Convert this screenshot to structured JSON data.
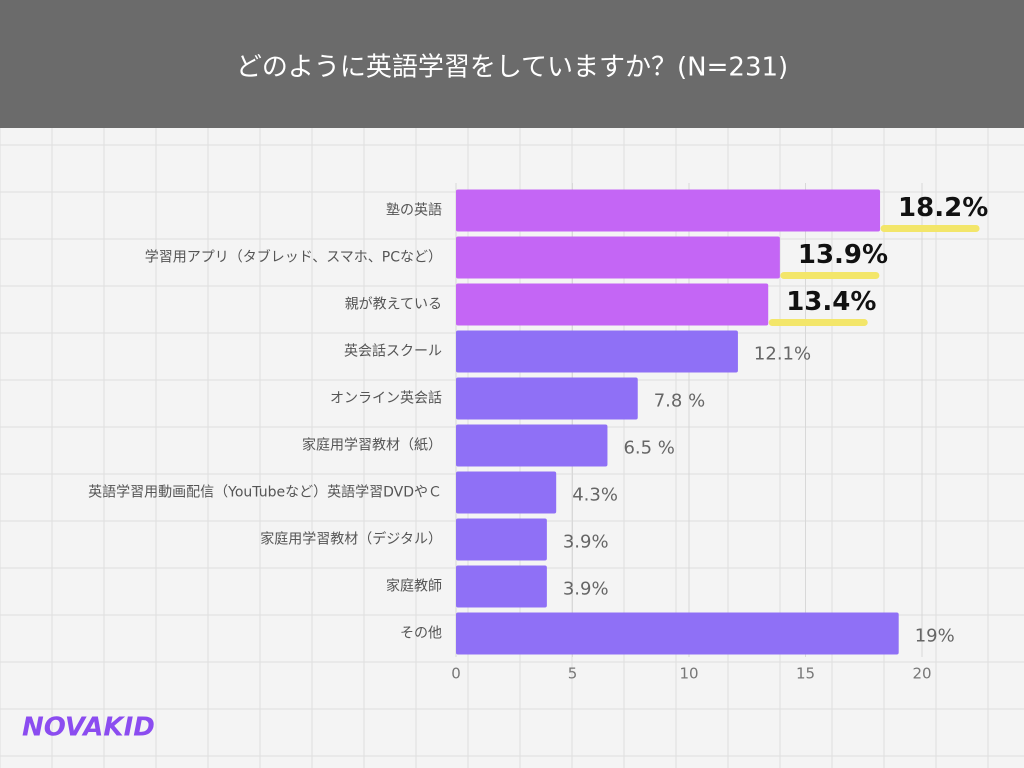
{
  "chart_data": {
    "type": "bar",
    "orientation": "horizontal",
    "title": "どのように英語学習をしていますか？(N=231)",
    "categories": [
      "塾の英語",
      "学習用アプリ（タブレッド、スマホ、PCなど）",
      "親が教えている",
      "英会話スクール",
      "オンライン英会話",
      "家庭用学習教材（紙）",
      "英語学習用動画配信（YouTubeなど）英語学習DVDやＣ",
      "家庭用学習教材（デジタル）",
      "家庭教師",
      "その他"
    ],
    "values": [
      18.2,
      13.9,
      13.4,
      12.1,
      7.8,
      6.5,
      4.3,
      3.9,
      3.9,
      19
    ],
    "value_labels": [
      "18.2%",
      "13.9%",
      "13.4%",
      "12.1%",
      "7.8 %",
      "6.5 %",
      "4.3%",
      "3.9%",
      "3.9%",
      "19%"
    ],
    "colors": [
      "#c466f5",
      "#c466f5",
      "#c466f5",
      "#8f70f6",
      "#8f70f6",
      "#8f70f6",
      "#8f70f6",
      "#8f70f6",
      "#8f70f6",
      "#8f70f6"
    ],
    "emphasis": [
      true,
      true,
      true,
      false,
      false,
      false,
      false,
      false,
      false,
      false
    ],
    "xlim": [
      0,
      22.5
    ],
    "xticks": [
      0,
      5,
      10,
      15,
      20
    ],
    "logo": "NOVAKID"
  }
}
